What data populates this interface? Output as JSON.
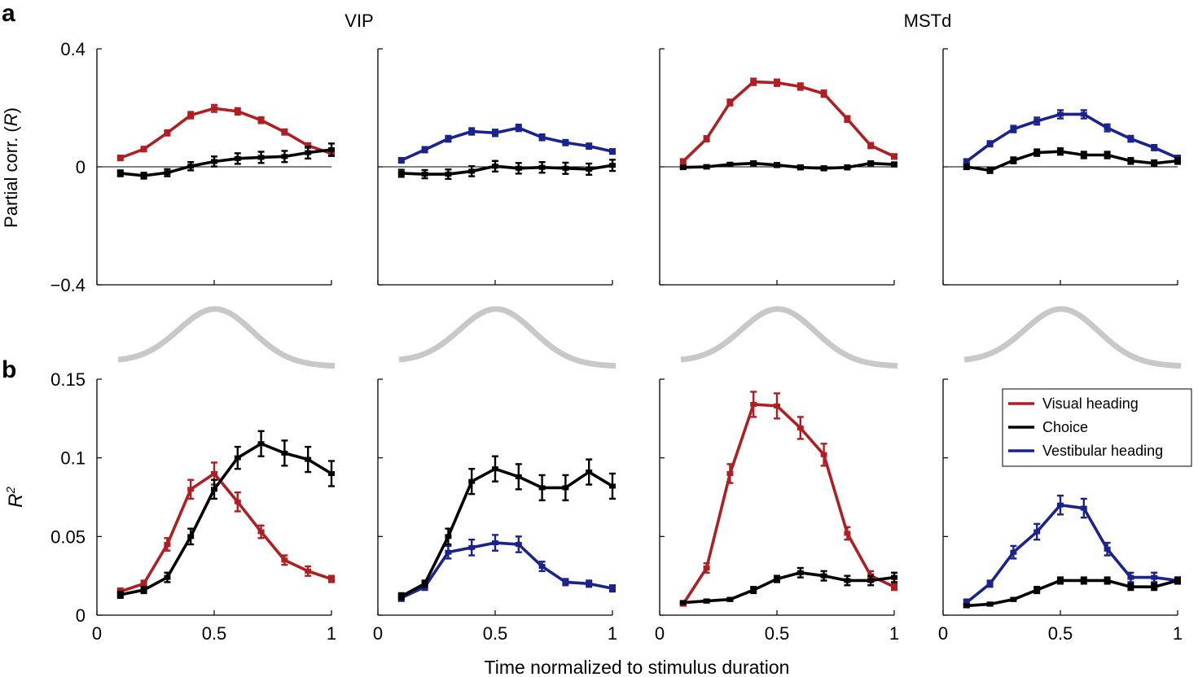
{
  "figure": {
    "panel_a_label": "a",
    "panel_b_label": "b",
    "area_titles": [
      "VIP",
      "MSTd"
    ],
    "shared_xlabel": "Time normalized to stimulus duration"
  },
  "colors": {
    "visual": "#b01e22",
    "choice": "#000000",
    "vestibular": "#1a238c",
    "temporal_profile": "#c8c8c8"
  },
  "legend": {
    "entries": [
      {
        "label": "Visual heading",
        "color": "#b01e22"
      },
      {
        "label": "Choice",
        "color": "#000000"
      },
      {
        "label": "Vestibular heading",
        "color": "#1a238c"
      }
    ]
  },
  "chart_data": [
    {
      "type": "line",
      "row": "a",
      "area": "VIP",
      "cue": "visual",
      "title": "VIP",
      "ylabel": "Partial corr. (R)",
      "ylim": [
        -0.4,
        0.4
      ],
      "yticks": [
        -0.4,
        0,
        0.4
      ],
      "ytick_labels": [
        "−0.4",
        "0",
        "0.4"
      ],
      "xlim": [
        0,
        1
      ],
      "zero_line": true,
      "x": [
        0.1,
        0.2,
        0.3,
        0.4,
        0.5,
        0.6,
        0.7,
        0.8,
        0.9,
        1.0
      ],
      "series": [
        {
          "name": "Visual heading",
          "color": "#b01e22",
          "values": [
            0.03,
            0.06,
            0.115,
            0.175,
            0.198,
            0.188,
            0.158,
            0.118,
            0.072,
            0.045
          ],
          "errors": [
            0.008,
            0.008,
            0.009,
            0.011,
            0.012,
            0.011,
            0.01,
            0.009,
            0.008,
            0.008
          ]
        },
        {
          "name": "Choice",
          "color": "#000000",
          "values": [
            -0.022,
            -0.03,
            -0.02,
            0.002,
            0.018,
            0.028,
            0.032,
            0.035,
            0.048,
            0.058
          ],
          "errors": [
            0.01,
            0.01,
            0.012,
            0.014,
            0.017,
            0.018,
            0.019,
            0.019,
            0.02,
            0.021
          ]
        }
      ]
    },
    {
      "type": "line",
      "row": "a",
      "area": "VIP",
      "cue": "vestibular",
      "ylim": [
        -0.4,
        0.4
      ],
      "xlim": [
        0,
        1
      ],
      "zero_line": true,
      "x": [
        0.1,
        0.2,
        0.3,
        0.4,
        0.5,
        0.6,
        0.7,
        0.8,
        0.9,
        1.0
      ],
      "series": [
        {
          "name": "Vestibular heading",
          "color": "#1a238c",
          "values": [
            0.022,
            0.058,
            0.095,
            0.12,
            0.115,
            0.132,
            0.1,
            0.082,
            0.07,
            0.052
          ],
          "errors": [
            0.008,
            0.009,
            0.01,
            0.011,
            0.011,
            0.011,
            0.01,
            0.009,
            0.009,
            0.008
          ]
        },
        {
          "name": "Choice",
          "color": "#000000",
          "values": [
            -0.022,
            -0.025,
            -0.025,
            -0.015,
            0.002,
            -0.005,
            -0.002,
            -0.005,
            -0.008,
            0.005
          ],
          "errors": [
            0.012,
            0.014,
            0.016,
            0.017,
            0.018,
            0.018,
            0.018,
            0.019,
            0.019,
            0.019
          ]
        }
      ]
    },
    {
      "type": "line",
      "row": "a",
      "area": "MSTd",
      "cue": "visual",
      "title": "MSTd",
      "ylim": [
        -0.4,
        0.4
      ],
      "xlim": [
        0,
        1
      ],
      "zero_line": true,
      "x": [
        0.1,
        0.2,
        0.3,
        0.4,
        0.5,
        0.6,
        0.7,
        0.8,
        0.9,
        1.0
      ],
      "series": [
        {
          "name": "Visual heading",
          "color": "#b01e22",
          "values": [
            0.018,
            0.095,
            0.218,
            0.288,
            0.285,
            0.272,
            0.248,
            0.162,
            0.072,
            0.035
          ],
          "errors": [
            0.008,
            0.009,
            0.01,
            0.011,
            0.011,
            0.011,
            0.011,
            0.01,
            0.009,
            0.008
          ]
        },
        {
          "name": "Choice",
          "color": "#000000",
          "values": [
            -0.002,
            0.0,
            0.008,
            0.012,
            0.006,
            -0.002,
            -0.005,
            -0.002,
            0.012,
            0.008
          ],
          "errors": [
            0.006,
            0.006,
            0.006,
            0.007,
            0.007,
            0.007,
            0.007,
            0.007,
            0.007,
            0.007
          ]
        }
      ]
    },
    {
      "type": "line",
      "row": "a",
      "area": "MSTd",
      "cue": "vestibular",
      "ylim": [
        -0.4,
        0.4
      ],
      "xlim": [
        0,
        1
      ],
      "zero_line": true,
      "x": [
        0.1,
        0.2,
        0.3,
        0.4,
        0.5,
        0.6,
        0.7,
        0.8,
        0.9,
        1.0
      ],
      "series": [
        {
          "name": "Vestibular heading",
          "color": "#1a238c",
          "values": [
            0.018,
            0.078,
            0.128,
            0.155,
            0.178,
            0.178,
            0.132,
            0.095,
            0.065,
            0.03
          ],
          "errors": [
            0.008,
            0.009,
            0.011,
            0.012,
            0.014,
            0.014,
            0.012,
            0.01,
            0.009,
            0.008
          ]
        },
        {
          "name": "Choice",
          "color": "#000000",
          "values": [
            0.0,
            -0.012,
            0.022,
            0.048,
            0.052,
            0.04,
            0.04,
            0.02,
            0.012,
            0.02
          ],
          "errors": [
            0.008,
            0.009,
            0.01,
            0.011,
            0.011,
            0.011,
            0.011,
            0.01,
            0.01,
            0.01
          ]
        }
      ]
    },
    {
      "type": "line",
      "row": "b",
      "area": "VIP",
      "cue": "visual",
      "ylabel": "R²",
      "ylim": [
        0,
        0.15
      ],
      "yticks": [
        0,
        0.05,
        0.1,
        0.15
      ],
      "ytick_labels": [
        "0",
        "0.05",
        "0.1",
        "0.15"
      ],
      "xlim": [
        0,
        1
      ],
      "xticks": [
        0,
        0.5,
        1
      ],
      "xtick_labels": [
        "0",
        "0.5",
        "1"
      ],
      "x": [
        0.1,
        0.2,
        0.3,
        0.4,
        0.5,
        0.6,
        0.7,
        0.8,
        0.9,
        1.0
      ],
      "series": [
        {
          "name": "Visual heading",
          "color": "#b01e22",
          "values": [
            0.015,
            0.02,
            0.045,
            0.08,
            0.09,
            0.072,
            0.053,
            0.035,
            0.028,
            0.023
          ],
          "errors": [
            0.002,
            0.002,
            0.004,
            0.006,
            0.007,
            0.006,
            0.004,
            0.003,
            0.003,
            0.002
          ]
        },
        {
          "name": "Choice",
          "color": "#000000",
          "values": [
            0.013,
            0.016,
            0.024,
            0.05,
            0.08,
            0.1,
            0.109,
            0.103,
            0.099,
            0.09
          ],
          "errors": [
            0.002,
            0.002,
            0.003,
            0.005,
            0.006,
            0.007,
            0.008,
            0.008,
            0.008,
            0.008
          ]
        }
      ]
    },
    {
      "type": "line",
      "row": "b",
      "area": "VIP",
      "cue": "vestibular",
      "ylim": [
        0,
        0.15
      ],
      "xlim": [
        0,
        1
      ],
      "xticks": [
        0,
        0.5,
        1
      ],
      "xtick_labels": [
        "0",
        "0.5",
        "1"
      ],
      "x": [
        0.1,
        0.2,
        0.3,
        0.4,
        0.5,
        0.6,
        0.7,
        0.8,
        0.9,
        1.0
      ],
      "series": [
        {
          "name": "Vestibular heading",
          "color": "#1a238c",
          "values": [
            0.011,
            0.018,
            0.04,
            0.043,
            0.046,
            0.045,
            0.031,
            0.021,
            0.02,
            0.017
          ],
          "errors": [
            0.002,
            0.002,
            0.004,
            0.005,
            0.005,
            0.005,
            0.003,
            0.002,
            0.002,
            0.002
          ]
        },
        {
          "name": "Choice",
          "color": "#000000",
          "values": [
            0.012,
            0.02,
            0.05,
            0.085,
            0.093,
            0.088,
            0.081,
            0.081,
            0.091,
            0.082
          ],
          "errors": [
            0.002,
            0.002,
            0.005,
            0.008,
            0.008,
            0.008,
            0.008,
            0.008,
            0.008,
            0.008
          ]
        }
      ]
    },
    {
      "type": "line",
      "row": "b",
      "area": "MSTd",
      "cue": "visual",
      "ylim": [
        0,
        0.15
      ],
      "xlim": [
        0,
        1
      ],
      "xticks": [
        0,
        0.5,
        1
      ],
      "xtick_labels": [
        "0",
        "0.5",
        "1"
      ],
      "x": [
        0.1,
        0.2,
        0.3,
        0.4,
        0.5,
        0.6,
        0.7,
        0.8,
        0.9,
        1.0
      ],
      "series": [
        {
          "name": "Visual heading",
          "color": "#b01e22",
          "values": [
            0.007,
            0.03,
            0.09,
            0.134,
            0.133,
            0.119,
            0.102,
            0.052,
            0.025,
            0.018
          ],
          "errors": [
            0.001,
            0.003,
            0.006,
            0.008,
            0.008,
            0.007,
            0.007,
            0.004,
            0.003,
            0.002
          ]
        },
        {
          "name": "Choice",
          "color": "#000000",
          "values": [
            0.008,
            0.009,
            0.01,
            0.016,
            0.023,
            0.027,
            0.025,
            0.022,
            0.022,
            0.024
          ],
          "errors": [
            0.001,
            0.001,
            0.001,
            0.002,
            0.002,
            0.003,
            0.003,
            0.003,
            0.003,
            0.003
          ]
        }
      ]
    },
    {
      "type": "line",
      "row": "b",
      "area": "MSTd",
      "cue": "vestibular",
      "ylim": [
        0,
        0.15
      ],
      "xlim": [
        0,
        1
      ],
      "xticks": [
        0,
        0.5,
        1
      ],
      "xtick_labels": [
        "0",
        "0.5",
        "1"
      ],
      "x": [
        0.1,
        0.2,
        0.3,
        0.4,
        0.5,
        0.6,
        0.7,
        0.8,
        0.9,
        1.0
      ],
      "series": [
        {
          "name": "Vestibular heading",
          "color": "#1a238c",
          "values": [
            0.008,
            0.02,
            0.04,
            0.053,
            0.07,
            0.068,
            0.042,
            0.024,
            0.024,
            0.022
          ],
          "errors": [
            0.002,
            0.002,
            0.004,
            0.005,
            0.006,
            0.006,
            0.004,
            0.003,
            0.003,
            0.002
          ]
        },
        {
          "name": "Choice",
          "color": "#000000",
          "values": [
            0.006,
            0.007,
            0.01,
            0.016,
            0.022,
            0.022,
            0.022,
            0.018,
            0.018,
            0.022
          ],
          "errors": [
            0.001,
            0.001,
            0.001,
            0.002,
            0.002,
            0.002,
            0.002,
            0.002,
            0.002,
            0.002
          ]
        }
      ]
    }
  ]
}
